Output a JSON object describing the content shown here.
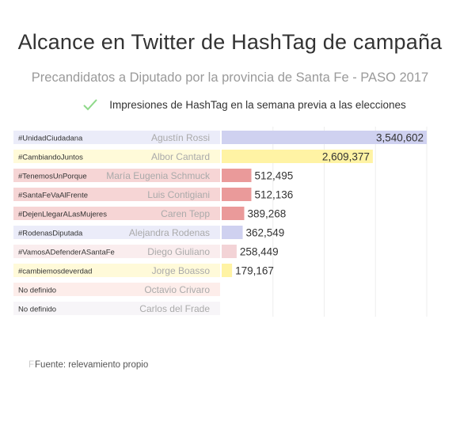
{
  "colors": {
    "UnidadCiudadana": "#cfd1f0",
    "Cambiemos": "#fff3a4",
    "Rojo": "#ea9a9a",
    "RojoClaro": "#f3d3d6",
    "Violeta": "#ebe6ee",
    "Salmon": "#fbd3ce",
    "gridline": "#eeeeee",
    "legend_check": "#8fd98a"
  },
  "chart_data": {
    "type": "bar",
    "title": "Alcance en Twitter de HashTag de campaña",
    "subtitle": "Precandidatos a Diputado por la provincia de Santa Fe - PASO 2017",
    "legend": {
      "label": "Impresiones de HashTag en la semana previa a las elecciones",
      "placement": "top-center"
    },
    "xlim": [
      0,
      3540602
    ],
    "grid": true,
    "rows": [
      {
        "hashtag": "#UnidadCiudadana",
        "candidate": "Agustín Rossi",
        "value": 3540602,
        "label": "3,540,602",
        "color": "UnidadCiudadana"
      },
      {
        "hashtag": "#CambiandoJuntos",
        "candidate": "Albor Cantard",
        "value": 2609377,
        "label": "2,609,377",
        "color": "Cambiemos"
      },
      {
        "hashtag": "#TenemosUnPorque",
        "candidate": "María Eugenia Schmuck",
        "value": 512495,
        "label": "512,495",
        "color": "Rojo"
      },
      {
        "hashtag": "#SantaFeVaAlFrente",
        "candidate": "Luis Contigiani",
        "value": 512136,
        "label": "512,136",
        "color": "Rojo"
      },
      {
        "hashtag": "#DejenLlegarALasMujeres",
        "candidate": "Caren Tepp",
        "value": 389268,
        "label": "389,268",
        "color": "Rojo"
      },
      {
        "hashtag": "#RodenasDiputada",
        "candidate": "Alejandra Rodenas",
        "value": 362549,
        "label": "362,549",
        "color": "UnidadCiudadana"
      },
      {
        "hashtag": "#VamosADefenderASantaFe",
        "candidate": "Diego Giuliano",
        "value": 258449,
        "label": "258,449",
        "color": "RojoClaro"
      },
      {
        "hashtag": "#cambiemosdeverdad",
        "candidate": "Jorge Boasso",
        "value": 179167,
        "label": "179,167",
        "color": "Cambiemos"
      },
      {
        "hashtag": "No definido",
        "candidate": "Octavio Crivaro",
        "value": 0,
        "label": "",
        "color": "Salmon"
      },
      {
        "hashtag": "No definido",
        "candidate": "Carlos del Frade",
        "value": 0,
        "label": "",
        "color": "Violeta"
      }
    ]
  },
  "footer": {
    "mark": "F",
    "text": "Fuente: relevamiento propio"
  }
}
